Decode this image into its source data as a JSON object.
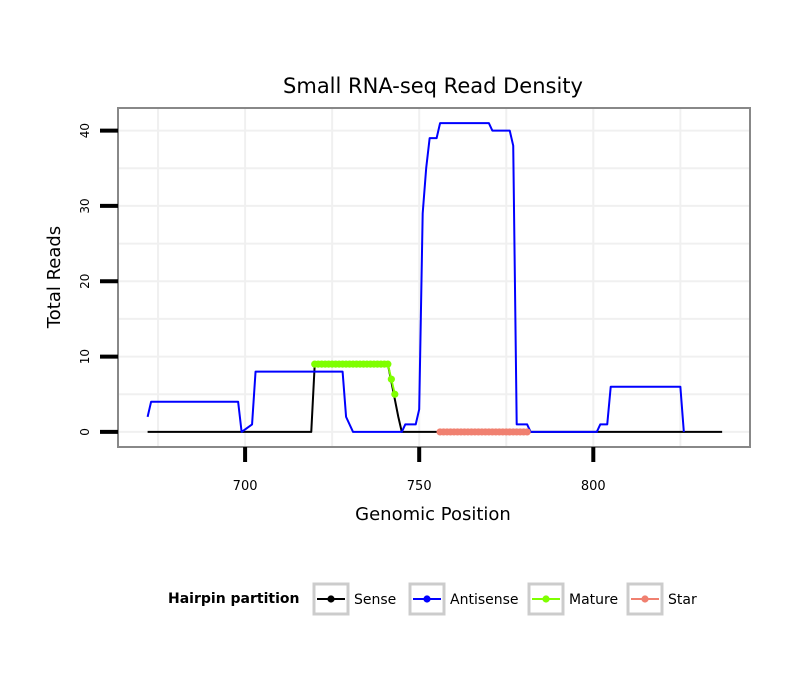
{
  "chart_data": {
    "type": "line",
    "title": "Small RNA-seq Read Density",
    "xlabel": "Genomic Position",
    "ylabel": "Total Reads",
    "xlim": [
      663.5,
      845
    ],
    "ylim": [
      -2,
      43
    ],
    "x_ticks": [
      700,
      750,
      800
    ],
    "y_ticks": [
      0,
      10,
      20,
      30,
      40
    ],
    "grid": true,
    "legend": {
      "title": "Hairpin partition",
      "position": "bottom",
      "entries": [
        {
          "name": "Sense",
          "color": "#000000"
        },
        {
          "name": "Antisense",
          "color": "#0000ff"
        },
        {
          "name": "Mature",
          "color": "#7fff00"
        },
        {
          "name": "Star",
          "color": "#f08070"
        }
      ]
    },
    "series": [
      {
        "name": "Sense",
        "color": "#000000",
        "markers": false,
        "x": [
          672,
          719,
          720,
          741,
          744,
          745,
          837
        ],
        "y": [
          0,
          0,
          9,
          9,
          2,
          0,
          0
        ]
      },
      {
        "name": "Antisense",
        "color": "#0000ff",
        "markers": false,
        "x": [
          672,
          673,
          698,
          699,
          702,
          703,
          718,
          719,
          728,
          729,
          731,
          745,
          746,
          748,
          749,
          750,
          751,
          752,
          753,
          755,
          756,
          770,
          771,
          776,
          777,
          778,
          781,
          782,
          801,
          802,
          804,
          805,
          825,
          826
        ],
        "y": [
          2,
          4,
          4,
          0,
          1,
          8,
          8,
          8,
          8,
          2,
          0,
          0,
          1,
          1,
          1,
          3,
          29,
          35,
          39,
          39,
          41,
          41,
          40,
          40,
          38,
          1,
          1,
          0,
          0,
          1,
          1,
          6,
          6,
          0
        ]
      },
      {
        "name": "Mature",
        "color": "#7fff00",
        "markers": true,
        "x": [
          720,
          721,
          722,
          723,
          724,
          725,
          726,
          727,
          728,
          729,
          730,
          731,
          732,
          733,
          734,
          735,
          736,
          737,
          738,
          739,
          740,
          741,
          742,
          743
        ],
        "y": [
          9,
          9,
          9,
          9,
          9,
          9,
          9,
          9,
          9,
          9,
          9,
          9,
          9,
          9,
          9,
          9,
          9,
          9,
          9,
          9,
          9,
          9,
          7,
          5
        ]
      },
      {
        "name": "Star",
        "color": "#f08070",
        "markers": true,
        "x": [
          756,
          757,
          758,
          759,
          760,
          761,
          762,
          763,
          764,
          765,
          766,
          767,
          768,
          769,
          770,
          771,
          772,
          773,
          774,
          775,
          776,
          777,
          778,
          779,
          780,
          781
        ],
        "y": [
          0,
          0,
          0,
          0,
          0,
          0,
          0,
          0,
          0,
          0,
          0,
          0,
          0,
          0,
          0,
          0,
          0,
          0,
          0,
          0,
          0,
          0,
          0,
          0,
          0,
          0
        ]
      }
    ]
  }
}
